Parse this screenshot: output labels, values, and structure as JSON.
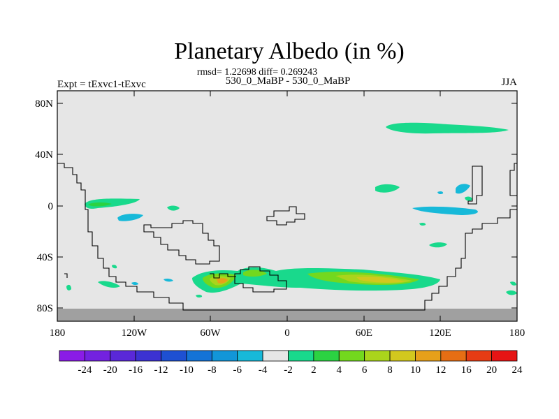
{
  "title": "Planetary Albedo (in %)",
  "stats": "rmsd= 1.22698 diff= 0.269243",
  "left_label": "Expt = tExvc1-tExvc",
  "center_label": "530_0_MaBP - 530_0_MaBP",
  "right_label": "JJA",
  "y_ticks": [
    "80N",
    "40N",
    "0",
    "40S",
    "80S"
  ],
  "x_ticks": [
    "180",
    "120W",
    "60W",
    "0",
    "60E",
    "120E",
    "180"
  ],
  "colorbar": {
    "labels": [
      "-24",
      "-20",
      "-16",
      "-12",
      "-10",
      "-8",
      "-6",
      "-4",
      "-2",
      "2",
      "4",
      "6",
      "8",
      "10",
      "12",
      "16",
      "20",
      "24"
    ],
    "colors": [
      "#8a1ce6",
      "#7322e0",
      "#5a28d8",
      "#3c32d2",
      "#1e50d2",
      "#1473d6",
      "#1296d8",
      "#17b9d9",
      "#e6e6e6",
      "#19d98c",
      "#2bd242",
      "#73d81e",
      "#aad41c",
      "#d2c81e",
      "#e6a01a",
      "#e66e14",
      "#e63c14",
      "#e61414"
    ]
  },
  "map": {
    "lon_range": [
      -180,
      180
    ],
    "lat_range": [
      -90,
      90
    ],
    "background_color": "#e6e6e6",
    "polar_mask_color": "#a0a0a0",
    "coastline_color": "#000000"
  }
}
